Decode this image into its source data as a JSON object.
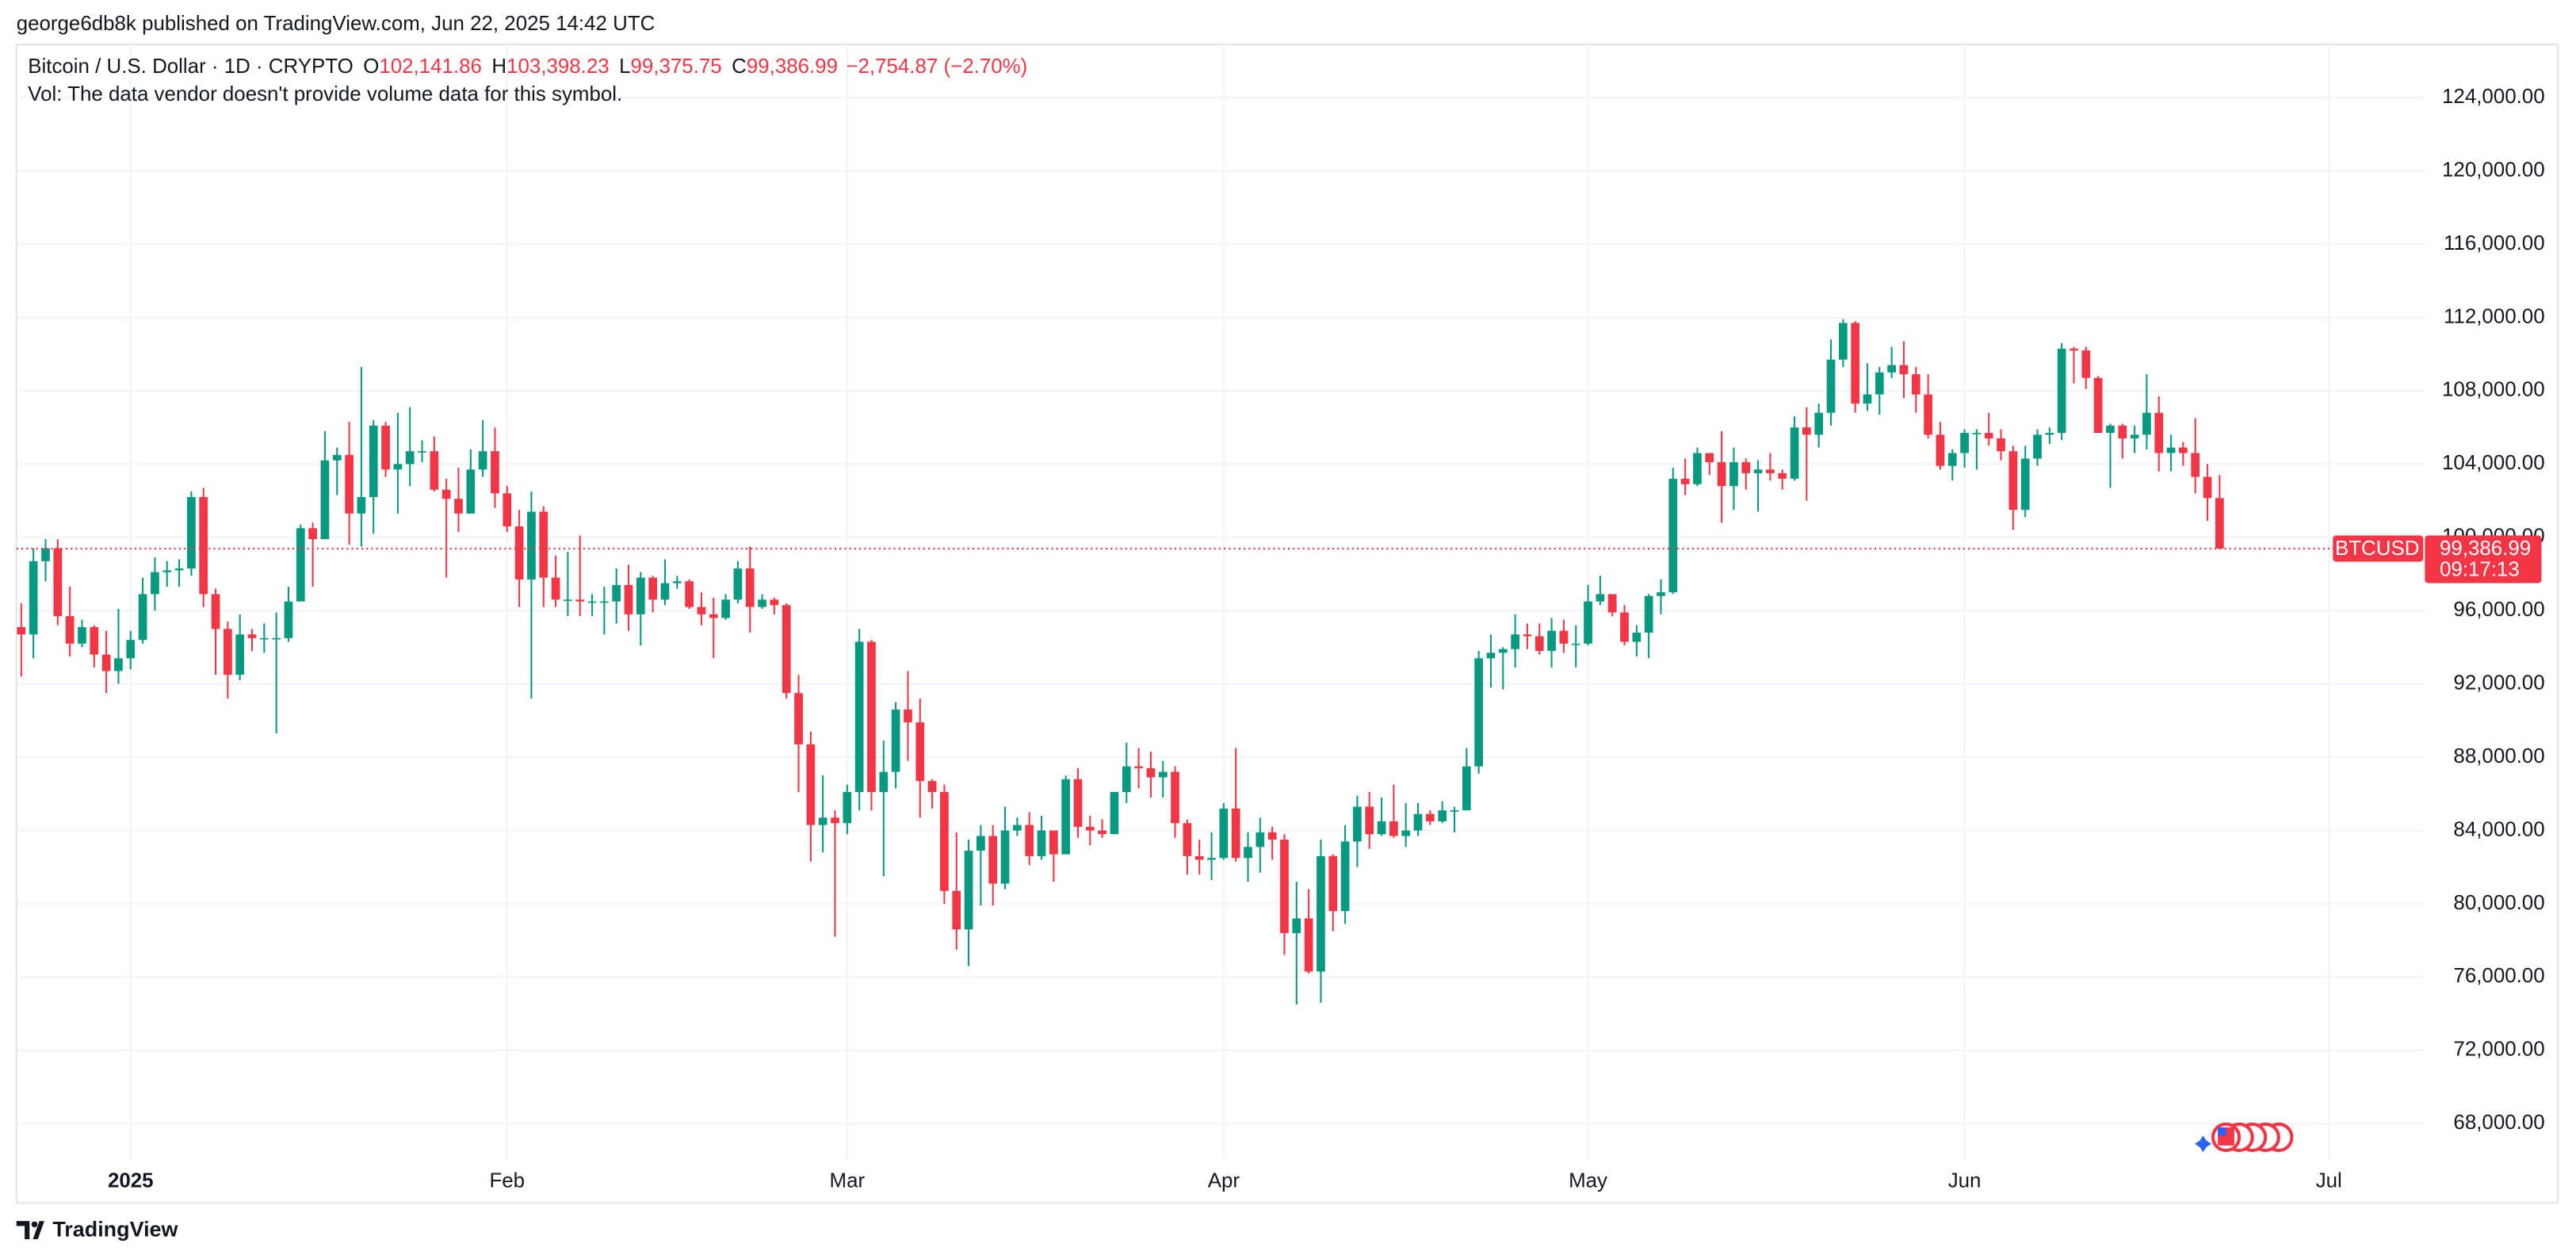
{
  "header": {
    "publisher": "george6db8k published on TradingView.com, Jun 22, 2025 14:42 UTC"
  },
  "legend": {
    "symbol": "Bitcoin / U.S. Dollar · 1D · CRYPTO",
    "items": [
      {
        "label": "O",
        "value": "102,141.86"
      },
      {
        "label": "H",
        "value": "103,398.23"
      },
      {
        "label": "L",
        "value": "99,375.75"
      },
      {
        "label": "C",
        "value": "99,386.99"
      }
    ],
    "change": "−2,754.87 (−2.70%)",
    "volume_note": "Vol: The data vendor doesn't provide volume data for this symbol."
  },
  "price_label": {
    "ticker": "BTCUSD",
    "price": "99,386.99",
    "countdown": "09:17:13"
  },
  "footer": {
    "brand": "TradingView"
  },
  "chart_data": {
    "type": "candlestick",
    "up_color": "#089981",
    "down_color": "#f23645",
    "grid": true,
    "last_price": 99386.99,
    "xlim": [
      -0.4,
      197.9
    ],
    "xticks": [
      {
        "value": 9,
        "label": "2025"
      },
      {
        "value": 40,
        "label": "Feb"
      },
      {
        "value": 68,
        "label": "Mar"
      },
      {
        "value": 99,
        "label": "Apr"
      },
      {
        "value": 129,
        "label": "May"
      },
      {
        "value": 160,
        "label": "Jun"
      },
      {
        "value": 190,
        "label": "Jul"
      }
    ],
    "ylim": [
      66000,
      126900
    ],
    "yticks": [
      {
        "value": 68000,
        "label": "68,000.00"
      },
      {
        "value": 72000,
        "label": "72,000.00"
      },
      {
        "value": 76000,
        "label": "76,000.00"
      },
      {
        "value": 80000,
        "label": "80,000.00"
      },
      {
        "value": 84000,
        "label": "84,000.00"
      },
      {
        "value": 88000,
        "label": "88,000.00"
      },
      {
        "value": 92000,
        "label": "92,000.00"
      },
      {
        "value": 96000,
        "label": "96,000.00"
      },
      {
        "value": 100000,
        "label": "100,000.00"
      },
      {
        "value": 104000,
        "label": "104,000.00"
      },
      {
        "value": 108000,
        "label": "108,000.00"
      },
      {
        "value": 112000,
        "label": "112,000.00"
      },
      {
        "value": 116000,
        "label": "116,000.00"
      },
      {
        "value": 120000,
        "label": "120,000.00"
      },
      {
        "value": 124000,
        "label": "124,000.00"
      }
    ],
    "ohlc": [
      [
        95100,
        96400,
        92400,
        94700
      ],
      [
        94700,
        99400,
        93400,
        98700
      ],
      [
        98700,
        99900,
        97600,
        99400
      ],
      [
        99400,
        99900,
        95200,
        95700
      ],
      [
        95700,
        97300,
        93500,
        94200
      ],
      [
        94200,
        95500,
        94000,
        95100
      ],
      [
        95100,
        95200,
        92900,
        93600
      ],
      [
        93600,
        94900,
        91500,
        92700
      ],
      [
        92700,
        96100,
        92000,
        93400
      ],
      [
        93400,
        94900,
        92800,
        94400
      ],
      [
        94400,
        97800,
        94200,
        96900
      ],
      [
        96900,
        98900,
        96000,
        98100
      ],
      [
        98100,
        98700,
        97300,
        98200
      ],
      [
        98200,
        98800,
        97300,
        98300
      ],
      [
        98300,
        102500,
        97900,
        102200
      ],
      [
        102200,
        102700,
        96200,
        96900
      ],
      [
        96900,
        97200,
        92500,
        95000
      ],
      [
        95000,
        95400,
        91200,
        92500
      ],
      [
        92500,
        95800,
        92200,
        94700
      ],
      [
        94700,
        95000,
        93800,
        94500
      ],
      [
        94500,
        95300,
        93700,
        94500
      ],
      [
        94500,
        95900,
        89300,
        94500
      ],
      [
        94500,
        97300,
        94300,
        96500
      ],
      [
        96500,
        100700,
        96500,
        100500
      ],
      [
        100500,
        100800,
        97300,
        99900
      ],
      [
        99900,
        105800,
        99900,
        104200
      ],
      [
        104200,
        104900,
        102300,
        104500
      ],
      [
        104500,
        106300,
        99600,
        101300
      ],
      [
        101300,
        109300,
        99500,
        102200
      ],
      [
        102200,
        106400,
        100200,
        106100
      ],
      [
        106100,
        106300,
        103300,
        103700
      ],
      [
        103700,
        106800,
        101300,
        104000
      ],
      [
        104000,
        107100,
        102800,
        104700
      ],
      [
        104700,
        105300,
        104100,
        104700
      ],
      [
        104700,
        105500,
        102500,
        102600
      ],
      [
        102600,
        103200,
        97800,
        102100
      ],
      [
        102100,
        103800,
        100300,
        101300
      ],
      [
        101300,
        104800,
        101300,
        103700
      ],
      [
        103700,
        106400,
        103300,
        104700
      ],
      [
        104700,
        106000,
        101600,
        102400
      ],
      [
        102400,
        102800,
        100300,
        100600
      ],
      [
        100600,
        101500,
        96200,
        97700
      ],
      [
        97700,
        102500,
        91200,
        101400
      ],
      [
        101400,
        101700,
        96200,
        97800
      ],
      [
        97800,
        99000,
        96200,
        96600
      ],
      [
        96600,
        99200,
        95700,
        96600
      ],
      [
        96600,
        100100,
        95700,
        96500
      ],
      [
        96500,
        96900,
        95700,
        96500
      ],
      [
        96500,
        97300,
        94700,
        96500
      ],
      [
        96500,
        98300,
        95300,
        97400
      ],
      [
        97400,
        98500,
        94900,
        95800
      ],
      [
        95800,
        98100,
        94100,
        97800
      ],
      [
        97800,
        97900,
        95900,
        96600
      ],
      [
        96600,
        98800,
        96300,
        97500
      ],
      [
        97500,
        97900,
        97200,
        97600
      ],
      [
        97600,
        97700,
        96100,
        96200
      ],
      [
        96200,
        97000,
        95200,
        95800
      ],
      [
        95800,
        96700,
        93400,
        95600
      ],
      [
        95600,
        96900,
        95500,
        96600
      ],
      [
        96600,
        98700,
        96400,
        98300
      ],
      [
        98300,
        99500,
        94800,
        96200
      ],
      [
        96200,
        96900,
        96100,
        96600
      ],
      [
        96600,
        96700,
        95800,
        96300
      ],
      [
        96300,
        96400,
        91200,
        91500
      ],
      [
        91500,
        92500,
        86100,
        88700
      ],
      [
        88700,
        89400,
        82300,
        84300
      ],
      [
        84300,
        87000,
        82800,
        84700
      ],
      [
        84700,
        85100,
        78200,
        84400
      ],
      [
        84400,
        86500,
        83800,
        86100
      ],
      [
        86100,
        95000,
        85100,
        94300
      ],
      [
        94300,
        94400,
        85100,
        86100
      ],
      [
        86100,
        88900,
        81500,
        87200
      ],
      [
        87200,
        91000,
        86300,
        90600
      ],
      [
        90600,
        92700,
        87800,
        89900
      ],
      [
        89900,
        91200,
        84700,
        86700
      ],
      [
        86700,
        86800,
        85200,
        86100
      ],
      [
        86100,
        86500,
        80000,
        80700
      ],
      [
        80700,
        83900,
        77500,
        78600
      ],
      [
        78600,
        83500,
        76600,
        82900
      ],
      [
        82900,
        84300,
        79900,
        83700
      ],
      [
        83700,
        84300,
        79900,
        81100
      ],
      [
        81100,
        85300,
        80800,
        84000
      ],
      [
        84000,
        84700,
        83700,
        84300
      ],
      [
        84300,
        85000,
        82100,
        82600
      ],
      [
        82600,
        84800,
        82400,
        84000
      ],
      [
        84000,
        84000,
        81200,
        82700
      ],
      [
        82700,
        87000,
        82700,
        86800
      ],
      [
        86800,
        87400,
        83600,
        84200
      ],
      [
        84200,
        84800,
        83200,
        84000
      ],
      [
        84000,
        84600,
        83600,
        83800
      ],
      [
        83800,
        86100,
        83800,
        86100
      ],
      [
        86100,
        88800,
        85500,
        87500
      ],
      [
        87500,
        88500,
        86300,
        87400
      ],
      [
        87400,
        88300,
        85800,
        86900
      ],
      [
        86900,
        87800,
        85800,
        87200
      ],
      [
        87200,
        87500,
        83600,
        84400
      ],
      [
        84400,
        84600,
        81600,
        82600
      ],
      [
        82600,
        83500,
        81600,
        82400
      ],
      [
        82400,
        83900,
        81300,
        82500
      ],
      [
        82500,
        85500,
        82400,
        85200
      ],
      [
        85200,
        88500,
        82300,
        82500
      ],
      [
        82500,
        83900,
        81200,
        83100
      ],
      [
        83100,
        84700,
        81700,
        83900
      ],
      [
        83900,
        84200,
        82400,
        83500
      ],
      [
        83500,
        83800,
        77200,
        78400
      ],
      [
        78400,
        81200,
        74500,
        79200
      ],
      [
        79200,
        80800,
        76200,
        76300
      ],
      [
        76300,
        83500,
        74600,
        82600
      ],
      [
        82600,
        82700,
        78500,
        79600
      ],
      [
        79600,
        84300,
        78900,
        83400
      ],
      [
        83400,
        85900,
        82000,
        85300
      ],
      [
        85300,
        86100,
        83000,
        83800
      ],
      [
        83800,
        85800,
        83700,
        84500
      ],
      [
        84500,
        86500,
        83600,
        83700
      ],
      [
        83700,
        85500,
        83100,
        84000
      ],
      [
        84000,
        85500,
        83700,
        84900
      ],
      [
        84900,
        85100,
        84300,
        84500
      ],
      [
        84500,
        85600,
        84400,
        85100
      ],
      [
        85100,
        85300,
        83900,
        85100
      ],
      [
        85100,
        88500,
        85100,
        87500
      ],
      [
        87500,
        93800,
        87100,
        93400
      ],
      [
        93400,
        94700,
        91800,
        93700
      ],
      [
        93700,
        94000,
        91700,
        93900
      ],
      [
        93900,
        95800,
        92900,
        94700
      ],
      [
        94700,
        95300,
        93900,
        94600
      ],
      [
        94600,
        95300,
        93600,
        93800
      ],
      [
        93800,
        95600,
        92900,
        94900
      ],
      [
        94900,
        95500,
        93700,
        94200
      ],
      [
        94200,
        95200,
        92900,
        94200
      ],
      [
        94200,
        97400,
        94100,
        96500
      ],
      [
        96500,
        97900,
        96300,
        96900
      ],
      [
        96900,
        96900,
        95700,
        95900
      ],
      [
        95900,
        96300,
        94100,
        94300
      ],
      [
        94300,
        95200,
        93500,
        94800
      ],
      [
        94800,
        96900,
        93400,
        96800
      ],
      [
        96800,
        97700,
        95800,
        97000
      ],
      [
        97000,
        103800,
        96900,
        103200
      ],
      [
        103200,
        104300,
        102300,
        102900
      ],
      [
        102900,
        104900,
        102800,
        104600
      ],
      [
        104600,
        104600,
        103400,
        104100
      ],
      [
        104100,
        105800,
        100800,
        102800
      ],
      [
        102800,
        104900,
        101500,
        104100
      ],
      [
        104100,
        104300,
        102600,
        103500
      ],
      [
        103500,
        104200,
        101400,
        103700
      ],
      [
        103700,
        104600,
        103100,
        103500
      ],
      [
        103500,
        103700,
        102600,
        103200
      ],
      [
        103200,
        106600,
        103100,
        106000
      ],
      [
        106000,
        107100,
        102000,
        105600
      ],
      [
        105600,
        107300,
        104900,
        106800
      ],
      [
        106800,
        110800,
        106100,
        109700
      ],
      [
        109700,
        111900,
        109300,
        111700
      ],
      [
        111700,
        111800,
        106800,
        107300
      ],
      [
        107300,
        109500,
        106900,
        107800
      ],
      [
        107800,
        109300,
        106700,
        109000
      ],
      [
        109000,
        110400,
        108700,
        109400
      ],
      [
        109400,
        110700,
        107600,
        108900
      ],
      [
        108900,
        109300,
        106800,
        107800
      ],
      [
        107800,
        108900,
        105400,
        105600
      ],
      [
        105600,
        106300,
        103700,
        103900
      ],
      [
        103900,
        104800,
        103100,
        104600
      ],
      [
        104600,
        105900,
        103800,
        105700
      ],
      [
        105700,
        105900,
        103700,
        105700
      ],
      [
        105700,
        106800,
        105000,
        105400
      ],
      [
        105400,
        105900,
        104200,
        104700
      ],
      [
        104700,
        105000,
        100400,
        101500
      ],
      [
        101500,
        105000,
        101100,
        104300
      ],
      [
        104300,
        105900,
        103900,
        105600
      ],
      [
        105600,
        106000,
        105100,
        105700
      ],
      [
        105700,
        110600,
        105300,
        110300
      ],
      [
        110300,
        110400,
        108400,
        110200
      ],
      [
        110200,
        110400,
        108100,
        108700
      ],
      [
        108700,
        108800,
        105700,
        105700
      ],
      [
        105700,
        106200,
        102700,
        106100
      ],
      [
        106100,
        106200,
        104300,
        105400
      ],
      [
        105400,
        106100,
        104600,
        105600
      ],
      [
        105600,
        108900,
        104800,
        106800
      ],
      [
        106800,
        107700,
        103600,
        104600
      ],
      [
        104600,
        105600,
        103600,
        104900
      ],
      [
        104900,
        105200,
        103900,
        104600
      ],
      [
        104600,
        106500,
        102400,
        103300
      ],
      [
        103300,
        104000,
        100900,
        102141.86
      ],
      [
        102141.86,
        103398.23,
        99375.75,
        99386.99
      ]
    ]
  }
}
